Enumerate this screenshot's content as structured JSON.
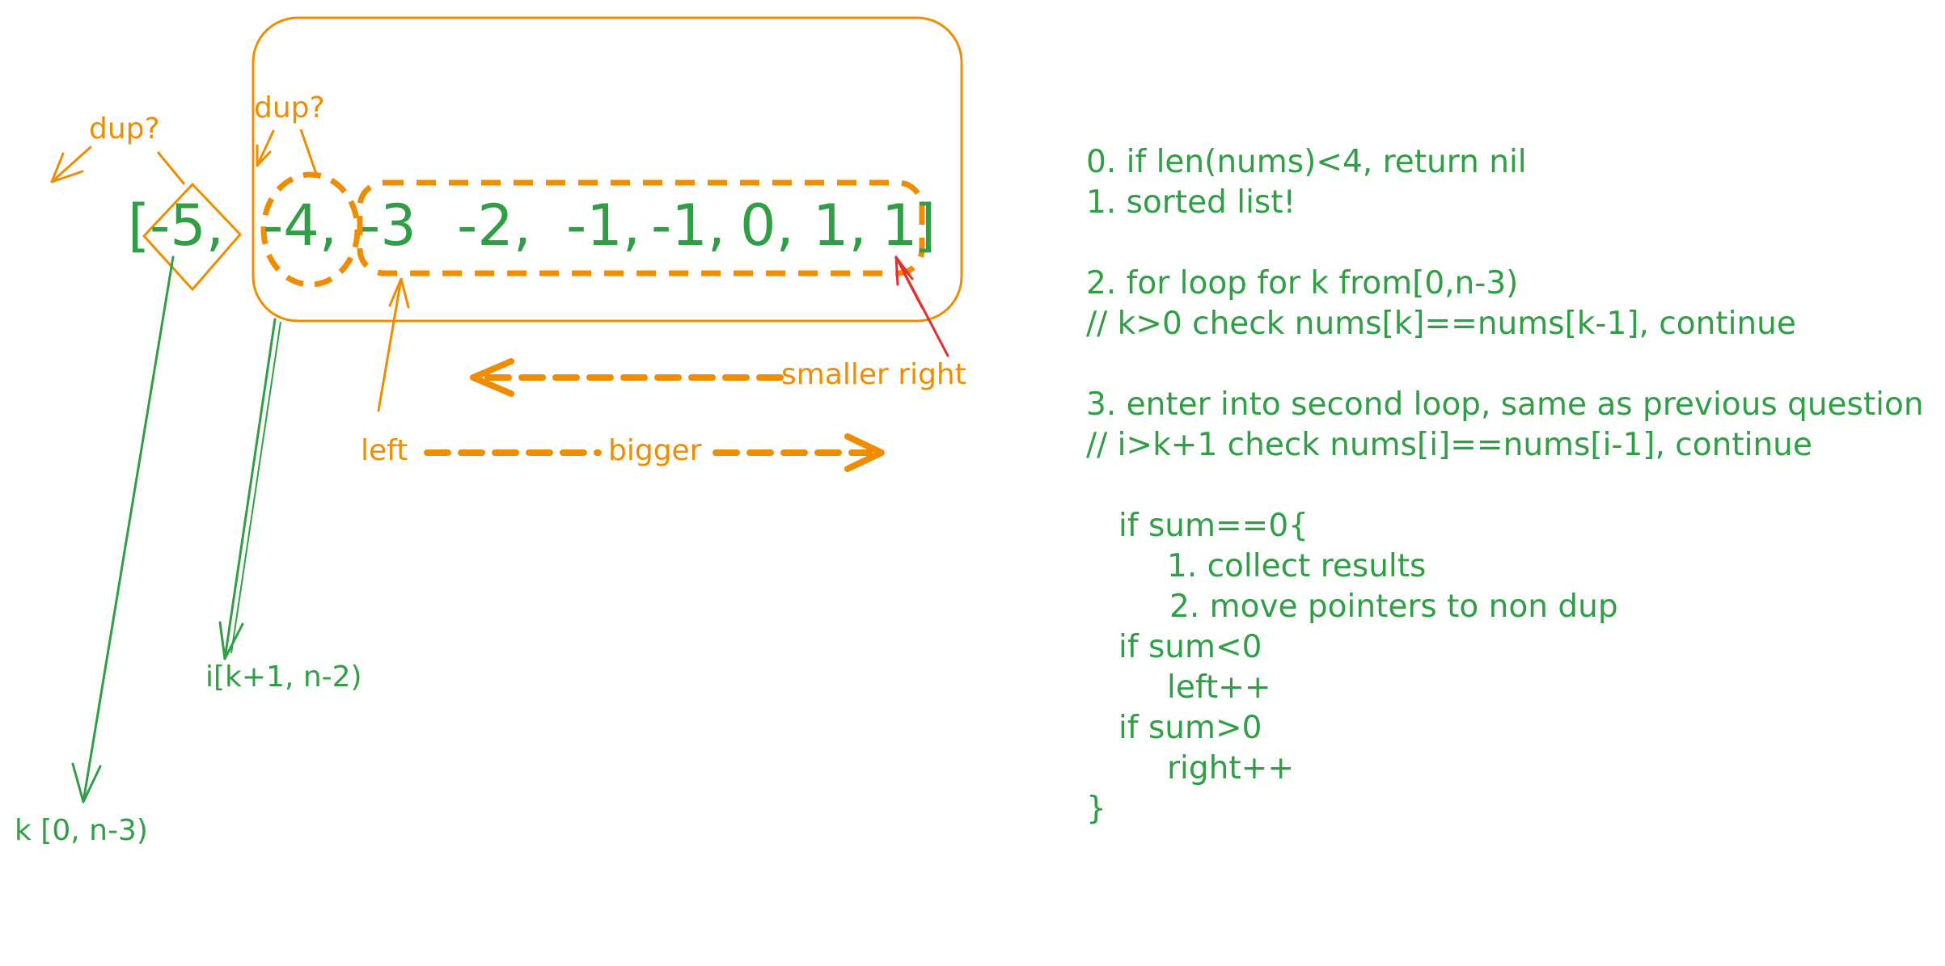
{
  "array_tokens": [
    "[",
    "-5,",
    "-4,",
    "-3",
    "-2,",
    "-1,",
    "-1,",
    "0,",
    "1,",
    "1",
    "]"
  ],
  "labels": {
    "dup_k": "dup?",
    "dup_i": "dup?",
    "smaller_right": "smaller right",
    "left": "left",
    "bigger": "bigger",
    "i_range": "i[k+1, n-2)",
    "k_range": "k [0, n-3)"
  },
  "notes": [
    "0. if len(nums)<4, return nil",
    "1. sorted list!",
    "2. for loop for k from[0,n-3)",
    "// k>0 check nums[k]==nums[k-1], continue",
    "3. enter into second loop, same as previous question",
    "// i>k+1 check nums[i]==nums[i-1], continue",
    "if sum==0{",
    "1. collect results",
    "2. move pointers to non dup",
    "if sum<0",
    "left++",
    "if sum>0",
    "right++",
    "}"
  ],
  "colors": {
    "green": "#2f9e44",
    "orange": "#f08c00",
    "red": "#e03131"
  }
}
